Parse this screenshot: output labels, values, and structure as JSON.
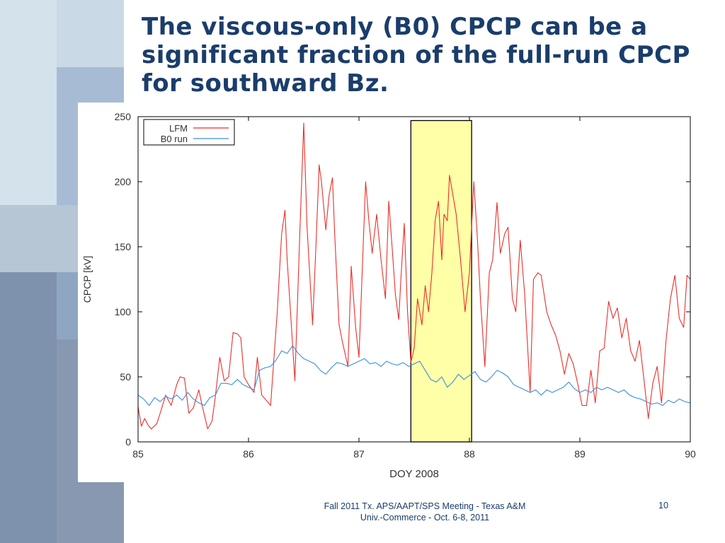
{
  "slide": {
    "title": "The viscous-only (B0) CPCP can be a significant fraction of the full-run CPCP for southward Bz.",
    "footer": "Fall 2011 Tx. APS/AAPT/SPS Meeting - Texas A&M Univ.-Commerce - Oct. 6-8, 2011",
    "page_number": "10",
    "colors": {
      "title": "#1a3d6b",
      "lfm": "#e8302a",
      "b0": "#3a8fd9",
      "highlight": "#ffffa8"
    }
  },
  "chart_data": {
    "type": "line",
    "title": "",
    "xlabel": "DOY 2008",
    "ylabel": "CPCP [kV]",
    "xlim": [
      85,
      90
    ],
    "ylim": [
      0,
      250
    ],
    "xticks": [
      85,
      86,
      87,
      88,
      89,
      90
    ],
    "yticks": [
      0,
      50,
      100,
      150,
      200,
      250
    ],
    "legend_position": "top-left",
    "highlight_region": {
      "x": [
        87.47,
        88.02
      ],
      "y": [
        0,
        247
      ]
    },
    "series": [
      {
        "name": "LFM",
        "color": "#e8302a",
        "points": [
          [
            85.0,
            27
          ],
          [
            85.03,
            12
          ],
          [
            85.06,
            18
          ],
          [
            85.09,
            13
          ],
          [
            85.12,
            10
          ],
          [
            85.17,
            14
          ],
          [
            85.2,
            22
          ],
          [
            85.25,
            36
          ],
          [
            85.3,
            28
          ],
          [
            85.35,
            44
          ],
          [
            85.38,
            50
          ],
          [
            85.42,
            49
          ],
          [
            85.46,
            22
          ],
          [
            85.5,
            26
          ],
          [
            85.55,
            40
          ],
          [
            85.58,
            28
          ],
          [
            85.63,
            10
          ],
          [
            85.67,
            16
          ],
          [
            85.7,
            35
          ],
          [
            85.74,
            65
          ],
          [
            85.78,
            47
          ],
          [
            85.82,
            50
          ],
          [
            85.86,
            84
          ],
          [
            85.9,
            83
          ],
          [
            85.93,
            80
          ],
          [
            85.96,
            50
          ],
          [
            86.0,
            44
          ],
          [
            86.05,
            38
          ],
          [
            86.08,
            65
          ],
          [
            86.12,
            36
          ],
          [
            86.18,
            30
          ],
          [
            86.2,
            28
          ],
          [
            86.26,
            100
          ],
          [
            86.3,
            160
          ],
          [
            86.33,
            178
          ],
          [
            86.35,
            140
          ],
          [
            86.38,
            100
          ],
          [
            86.42,
            47
          ],
          [
            86.46,
            150
          ],
          [
            86.5,
            245
          ],
          [
            86.53,
            165
          ],
          [
            86.56,
            120
          ],
          [
            86.58,
            90
          ],
          [
            86.61,
            150
          ],
          [
            86.64,
            213
          ],
          [
            86.66,
            200
          ],
          [
            86.7,
            163
          ],
          [
            86.73,
            190
          ],
          [
            86.76,
            203
          ],
          [
            86.78,
            160
          ],
          [
            86.82,
            90
          ],
          [
            86.85,
            77
          ],
          [
            86.9,
            58
          ],
          [
            86.93,
            135
          ],
          [
            86.97,
            88
          ],
          [
            87.0,
            65
          ],
          [
            87.06,
            200
          ],
          [
            87.09,
            170
          ],
          [
            87.12,
            145
          ],
          [
            87.16,
            175
          ],
          [
            87.2,
            140
          ],
          [
            87.24,
            110
          ],
          [
            87.27,
            185
          ],
          [
            87.3,
            150
          ],
          [
            87.33,
            113
          ],
          [
            87.36,
            94
          ],
          [
            87.38,
            126
          ],
          [
            87.41,
            168
          ],
          [
            87.44,
            100
          ],
          [
            87.47,
            61
          ],
          [
            87.5,
            72
          ],
          [
            87.53,
            110
          ],
          [
            87.57,
            90
          ],
          [
            87.6,
            120
          ],
          [
            87.63,
            100
          ],
          [
            87.66,
            130
          ],
          [
            87.69,
            170
          ],
          [
            87.72,
            185
          ],
          [
            87.75,
            140
          ],
          [
            87.77,
            175
          ],
          [
            87.8,
            170
          ],
          [
            87.82,
            205
          ],
          [
            87.85,
            190
          ],
          [
            87.88,
            175
          ],
          [
            87.92,
            140
          ],
          [
            87.96,
            100
          ],
          [
            88.0,
            130
          ],
          [
            88.04,
            200
          ],
          [
            88.07,
            160
          ],
          [
            88.1,
            110
          ],
          [
            88.14,
            58
          ],
          [
            88.18,
            130
          ],
          [
            88.21,
            140
          ],
          [
            88.25,
            184
          ],
          [
            88.28,
            145
          ],
          [
            88.32,
            160
          ],
          [
            88.35,
            165
          ],
          [
            88.39,
            110
          ],
          [
            88.42,
            100
          ],
          [
            88.46,
            155
          ],
          [
            88.5,
            114
          ],
          [
            88.55,
            38
          ],
          [
            88.58,
            125
          ],
          [
            88.62,
            130
          ],
          [
            88.65,
            128
          ],
          [
            88.7,
            100
          ],
          [
            88.74,
            90
          ],
          [
            88.78,
            82
          ],
          [
            88.82,
            70
          ],
          [
            88.86,
            52
          ],
          [
            88.9,
            68
          ],
          [
            88.94,
            60
          ],
          [
            88.98,
            45
          ],
          [
            89.02,
            28
          ],
          [
            89.06,
            28
          ],
          [
            89.1,
            55
          ],
          [
            89.14,
            30
          ],
          [
            89.18,
            70
          ],
          [
            89.22,
            72
          ],
          [
            89.26,
            108
          ],
          [
            89.3,
            95
          ],
          [
            89.34,
            103
          ],
          [
            89.38,
            80
          ],
          [
            89.42,
            95
          ],
          [
            89.46,
            70
          ],
          [
            89.5,
            62
          ],
          [
            89.54,
            78
          ],
          [
            89.58,
            48
          ],
          [
            89.62,
            18
          ],
          [
            89.66,
            45
          ],
          [
            89.7,
            58
          ],
          [
            89.74,
            30
          ],
          [
            89.78,
            78
          ],
          [
            89.82,
            110
          ],
          [
            89.86,
            128
          ],
          [
            89.9,
            95
          ],
          [
            89.94,
            88
          ],
          [
            89.97,
            128
          ],
          [
            90.0,
            125
          ]
        ]
      },
      {
        "name": "B0 run",
        "color": "#3a8fd9",
        "points": [
          [
            85.0,
            36
          ],
          [
            85.05,
            33
          ],
          [
            85.1,
            28
          ],
          [
            85.15,
            34
          ],
          [
            85.2,
            31
          ],
          [
            85.25,
            35
          ],
          [
            85.3,
            33
          ],
          [
            85.35,
            36
          ],
          [
            85.4,
            32
          ],
          [
            85.45,
            38
          ],
          [
            85.5,
            33
          ],
          [
            85.55,
            30
          ],
          [
            85.6,
            28
          ],
          [
            85.65,
            34
          ],
          [
            85.7,
            36
          ],
          [
            85.75,
            45
          ],
          [
            85.8,
            45
          ],
          [
            85.85,
            44
          ],
          [
            85.9,
            48
          ],
          [
            85.95,
            44
          ],
          [
            86.0,
            42
          ],
          [
            86.05,
            40
          ],
          [
            86.1,
            55
          ],
          [
            86.15,
            57
          ],
          [
            86.2,
            58
          ],
          [
            86.25,
            63
          ],
          [
            86.3,
            70
          ],
          [
            86.35,
            68
          ],
          [
            86.4,
            74
          ],
          [
            86.45,
            68
          ],
          [
            86.5,
            64
          ],
          [
            86.55,
            62
          ],
          [
            86.6,
            60
          ],
          [
            86.65,
            55
          ],
          [
            86.7,
            52
          ],
          [
            86.75,
            57
          ],
          [
            86.8,
            61
          ],
          [
            86.85,
            60
          ],
          [
            86.9,
            58
          ],
          [
            86.95,
            60
          ],
          [
            87.0,
            62
          ],
          [
            87.05,
            64
          ],
          [
            87.1,
            60
          ],
          [
            87.15,
            61
          ],
          [
            87.2,
            58
          ],
          [
            87.25,
            62
          ],
          [
            87.3,
            60
          ],
          [
            87.35,
            59
          ],
          [
            87.4,
            61
          ],
          [
            87.45,
            58
          ],
          [
            87.5,
            60
          ],
          [
            87.55,
            62
          ],
          [
            87.6,
            55
          ],
          [
            87.65,
            48
          ],
          [
            87.7,
            46
          ],
          [
            87.75,
            50
          ],
          [
            87.8,
            42
          ],
          [
            87.85,
            46
          ],
          [
            87.9,
            52
          ],
          [
            87.95,
            48
          ],
          [
            88.0,
            51
          ],
          [
            88.05,
            54
          ],
          [
            88.1,
            48
          ],
          [
            88.15,
            46
          ],
          [
            88.2,
            50
          ],
          [
            88.25,
            55
          ],
          [
            88.3,
            53
          ],
          [
            88.35,
            50
          ],
          [
            88.4,
            44
          ],
          [
            88.45,
            42
          ],
          [
            88.5,
            40
          ],
          [
            88.55,
            38
          ],
          [
            88.6,
            40
          ],
          [
            88.65,
            36
          ],
          [
            88.7,
            40
          ],
          [
            88.75,
            38
          ],
          [
            88.8,
            40
          ],
          [
            88.85,
            42
          ],
          [
            88.9,
            46
          ],
          [
            88.95,
            41
          ],
          [
            89.0,
            38
          ],
          [
            89.05,
            40
          ],
          [
            89.1,
            38
          ],
          [
            89.15,
            42
          ],
          [
            89.2,
            40
          ],
          [
            89.25,
            42
          ],
          [
            89.3,
            40
          ],
          [
            89.35,
            38
          ],
          [
            89.4,
            40
          ],
          [
            89.45,
            36
          ],
          [
            89.5,
            34
          ],
          [
            89.55,
            33
          ],
          [
            89.6,
            31
          ],
          [
            89.65,
            29
          ],
          [
            89.7,
            30
          ],
          [
            89.75,
            28
          ],
          [
            89.8,
            32
          ],
          [
            89.85,
            30
          ],
          [
            89.9,
            33
          ],
          [
            89.95,
            31
          ],
          [
            90.0,
            30
          ]
        ]
      }
    ]
  }
}
